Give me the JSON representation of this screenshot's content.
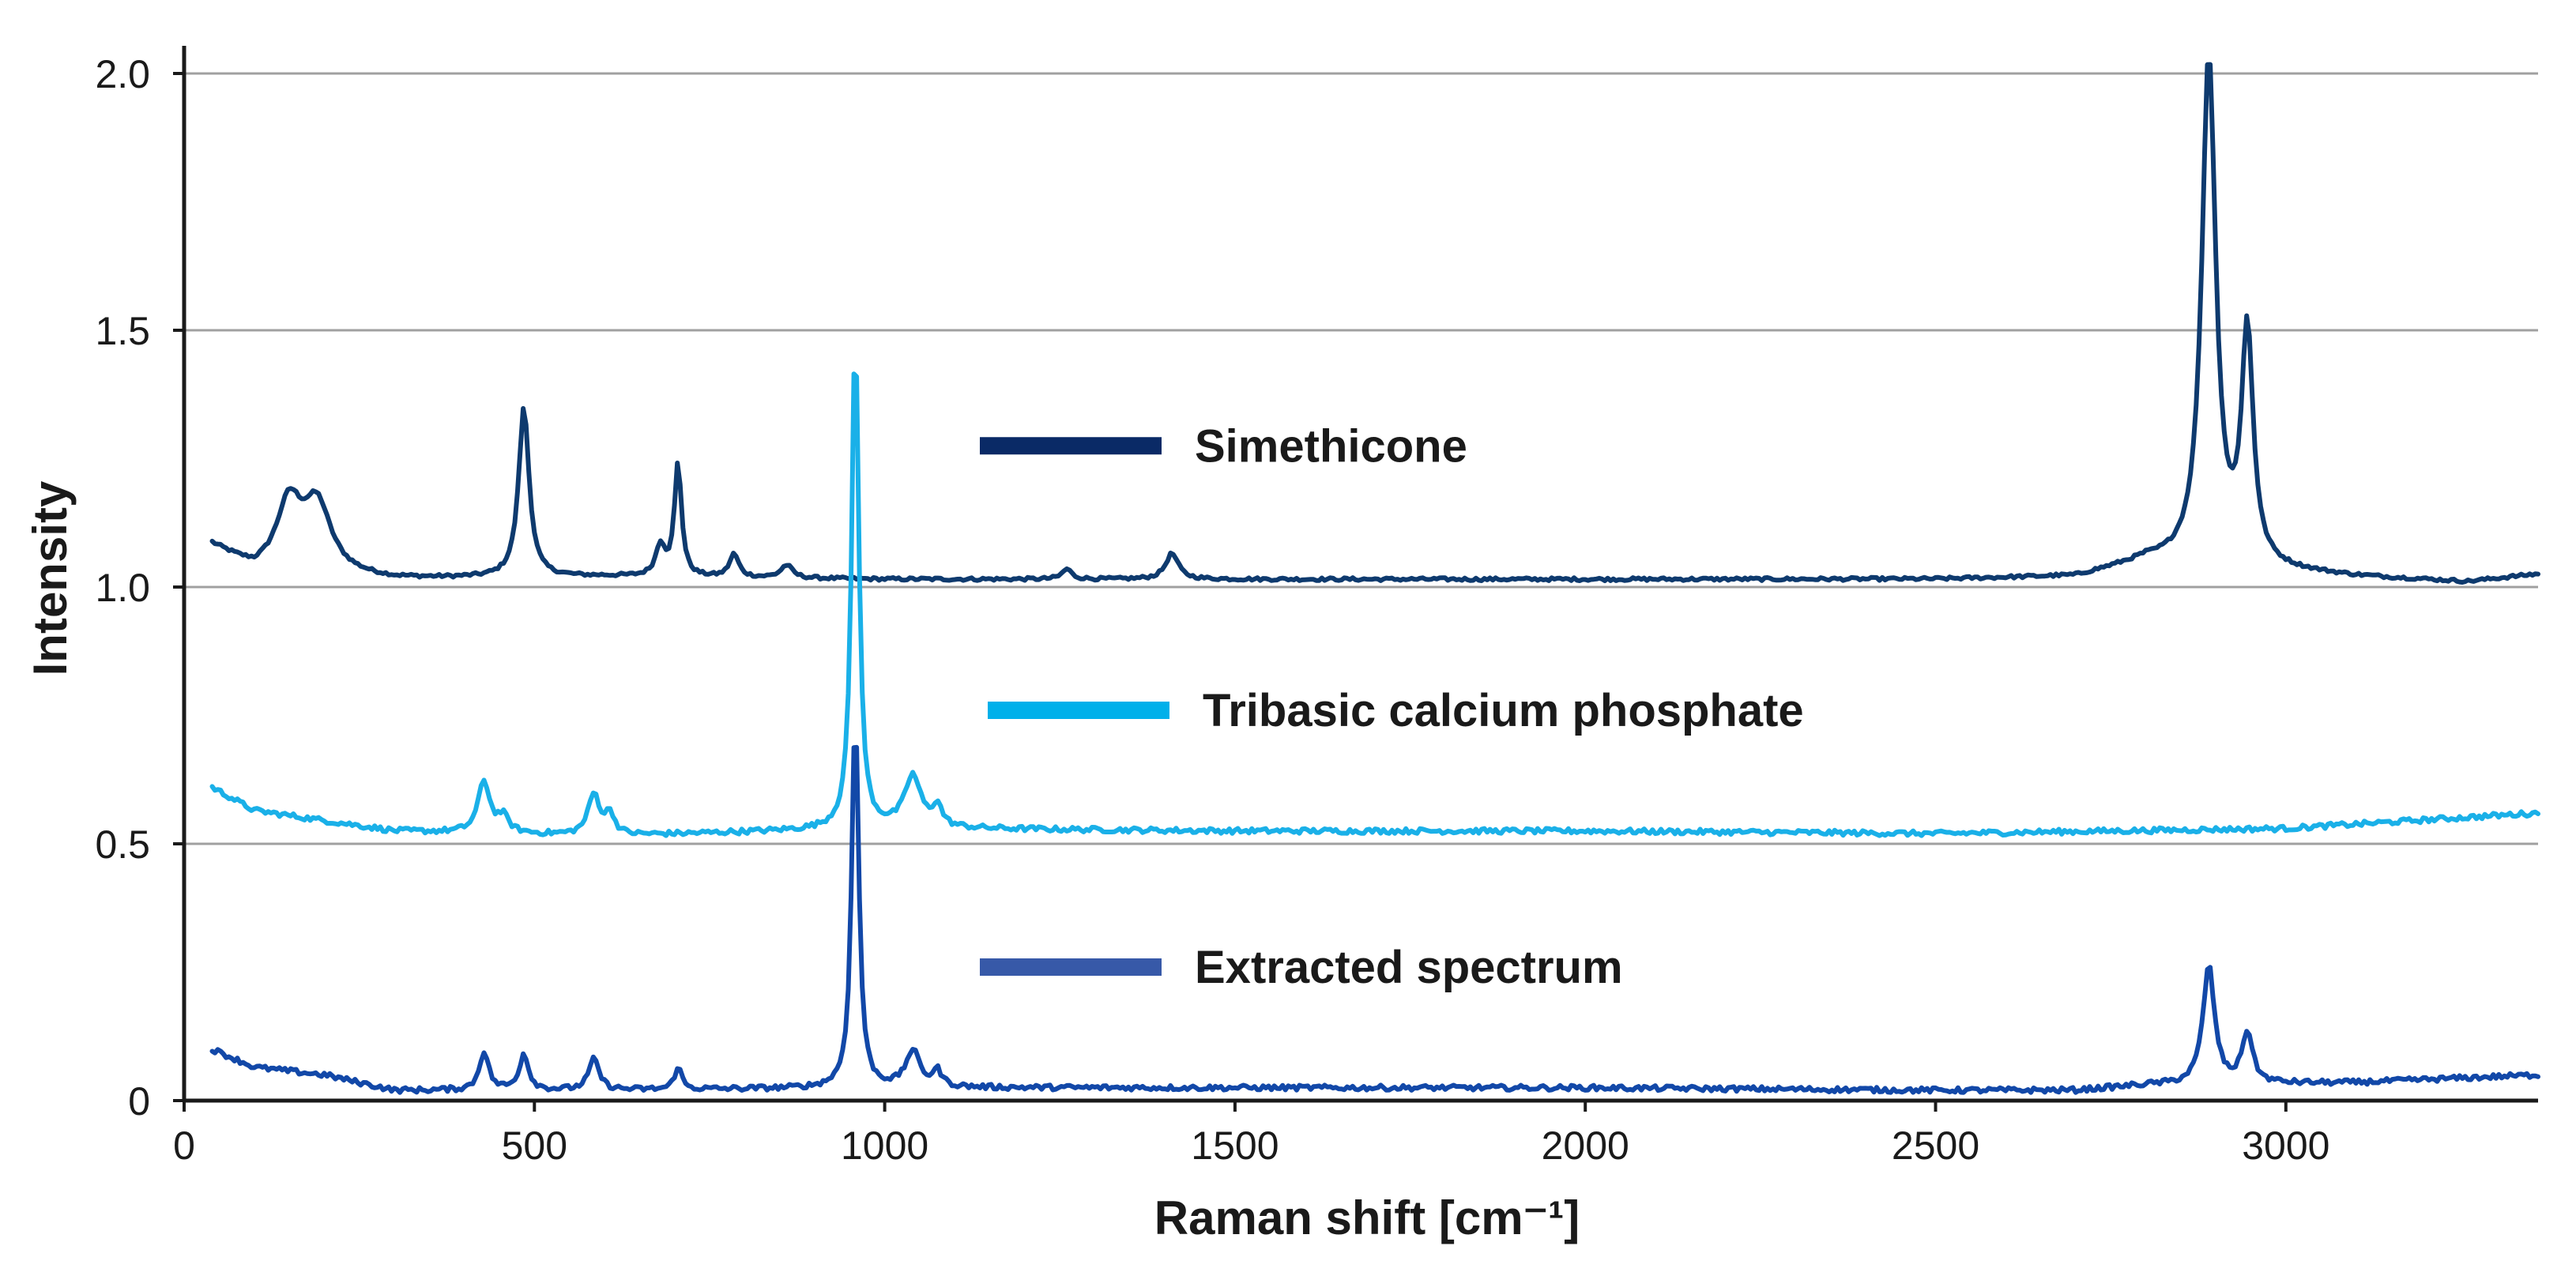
{
  "chart_data": {
    "type": "line",
    "title": "",
    "xlabel": "Raman shift [cm⁻¹]",
    "ylabel": "Intensity",
    "xlim": [
      0,
      3360
    ],
    "ylim": [
      0,
      2.0
    ],
    "xticks": [
      0,
      500,
      1000,
      1500,
      2000,
      2500,
      3000
    ],
    "xtick_labels": [
      "0",
      "500",
      "1000",
      "1500",
      "2000",
      "2500",
      "3000"
    ],
    "yticks": [
      0,
      0.5,
      1.0,
      1.5,
      2.0
    ],
    "ytick_labels": [
      "0",
      "0.5",
      "1.0",
      "1.5",
      "2.0"
    ],
    "grid": "horizontal",
    "legend_position": "center",
    "series": [
      {
        "name": "Simethicone",
        "color": "#0e3a6e",
        "legend_color": "#0a2a66",
        "baseline": [
          [
            40,
            1.08
          ],
          [
            100,
            1.03
          ],
          [
            300,
            1.015
          ],
          [
            600,
            1.02
          ],
          [
            1000,
            1.015
          ],
          [
            1500,
            1.015
          ],
          [
            2000,
            1.015
          ],
          [
            2500,
            1.015
          ],
          [
            2700,
            1.02
          ],
          [
            2800,
            1.05
          ],
          [
            3100,
            1.02
          ],
          [
            3260,
            1.01
          ],
          [
            3360,
            1.025
          ]
        ],
        "peaks": [
          {
            "x": 150,
            "h": 0.13,
            "w": 22
          },
          {
            "x": 190,
            "h": 0.13,
            "w": 24
          },
          {
            "x": 485,
            "h": 0.33,
            "w": 9
          },
          {
            "x": 680,
            "h": 0.06,
            "w": 8
          },
          {
            "x": 705,
            "h": 0.22,
            "w": 6
          },
          {
            "x": 785,
            "h": 0.045,
            "w": 8
          },
          {
            "x": 860,
            "h": 0.025,
            "w": 10
          },
          {
            "x": 1260,
            "h": 0.02,
            "w": 8
          },
          {
            "x": 1410,
            "h": 0.05,
            "w": 11
          },
          {
            "x": 2890,
            "h": 0.99,
            "w": 12
          },
          {
            "x": 2945,
            "h": 0.45,
            "w": 10
          }
        ],
        "noise": 0.003
      },
      {
        "name": "Tribasic calcium phosphate",
        "color": "#1ab0e8",
        "legend_color": "#00b0ea",
        "baseline": [
          [
            40,
            0.61
          ],
          [
            100,
            0.565
          ],
          [
            300,
            0.525
          ],
          [
            600,
            0.515
          ],
          [
            1000,
            0.53
          ],
          [
            1500,
            0.525
          ],
          [
            2000,
            0.525
          ],
          [
            2500,
            0.52
          ],
          [
            3000,
            0.53
          ],
          [
            3360,
            0.56
          ]
        ],
        "peaks": [
          {
            "x": 428,
            "h": 0.1,
            "w": 10
          },
          {
            "x": 455,
            "h": 0.03,
            "w": 10
          },
          {
            "x": 585,
            "h": 0.08,
            "w": 10
          },
          {
            "x": 608,
            "h": 0.04,
            "w": 8
          },
          {
            "x": 958,
            "h": 0.98,
            "w": 6
          },
          {
            "x": 1040,
            "h": 0.1,
            "w": 14
          },
          {
            "x": 1075,
            "h": 0.04,
            "w": 8
          }
        ],
        "noise": 0.005
      },
      {
        "name": "Extracted spectrum",
        "color": "#1248a8",
        "legend_color": "#3759a8",
        "baseline": [
          [
            40,
            0.1
          ],
          [
            100,
            0.065
          ],
          [
            200,
            0.05
          ],
          [
            300,
            0.02
          ],
          [
            400,
            0.02
          ],
          [
            600,
            0.02
          ],
          [
            1000,
            0.025
          ],
          [
            1500,
            0.025
          ],
          [
            2000,
            0.025
          ],
          [
            2500,
            0.02
          ],
          [
            2700,
            0.02
          ],
          [
            2800,
            0.03
          ],
          [
            3100,
            0.035
          ],
          [
            3360,
            0.05
          ]
        ],
        "peaks": [
          {
            "x": 428,
            "h": 0.075,
            "w": 8
          },
          {
            "x": 485,
            "h": 0.07,
            "w": 8
          },
          {
            "x": 585,
            "h": 0.06,
            "w": 9
          },
          {
            "x": 705,
            "h": 0.045,
            "w": 6
          },
          {
            "x": 958,
            "h": 0.735,
            "w": 6
          },
          {
            "x": 1040,
            "h": 0.07,
            "w": 12
          },
          {
            "x": 1075,
            "h": 0.03,
            "w": 8
          },
          {
            "x": 2890,
            "h": 0.23,
            "w": 10
          },
          {
            "x": 2945,
            "h": 0.1,
            "w": 9
          }
        ],
        "noise": 0.005
      }
    ]
  }
}
